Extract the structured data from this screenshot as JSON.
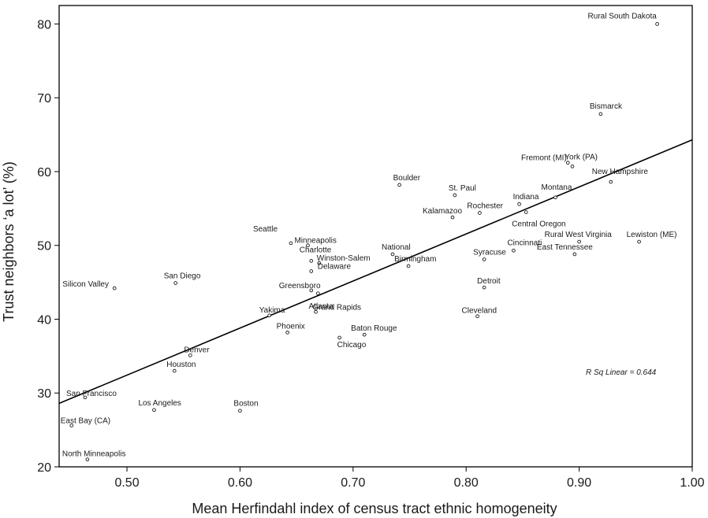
{
  "chart_data": {
    "type": "scatter",
    "xlabel": "Mean Herfindahl index of census tract ethnic homogeneity",
    "ylabel": "Trust neighbors ‘a lot’ (%)",
    "xlim": [
      0.44,
      1.0
    ],
    "ylim": [
      20,
      82.5
    ],
    "x_ticks": [
      0.5,
      0.6,
      0.7,
      0.8,
      0.9,
      1.0
    ],
    "x_tick_labels": [
      "0.50",
      "0.60",
      "0.70",
      "0.80",
      "0.90",
      "1.00"
    ],
    "y_ticks": [
      20,
      30,
      40,
      50,
      60,
      70,
      80
    ],
    "y_tick_labels": [
      "20",
      "30",
      "40",
      "50",
      "60",
      "70",
      "80"
    ],
    "grid": false,
    "annotation": "R Sq Linear = 0.644",
    "fit_line": {
      "x": [
        0.44,
        1.0
      ],
      "y": [
        28.6,
        64.3
      ]
    },
    "points": [
      {
        "label": "Rural South Dakota",
        "x": 0.969,
        "y": 80.0
      },
      {
        "label": "Bismarck",
        "x": 0.919,
        "y": 67.8
      },
      {
        "label": "York (PA)",
        "x": 0.89,
        "y": 61.2
      },
      {
        "label": "Fremont (MI)",
        "x": 0.894,
        "y": 60.7
      },
      {
        "label": "New Hampshire",
        "x": 0.928,
        "y": 58.6
      },
      {
        "label": "Montana",
        "x": 0.879,
        "y": 56.5
      },
      {
        "label": "Boulder",
        "x": 0.741,
        "y": 58.2
      },
      {
        "label": "St. Paul",
        "x": 0.79,
        "y": 56.8
      },
      {
        "label": "Indiana",
        "x": 0.847,
        "y": 55.6
      },
      {
        "label": "Rochester",
        "x": 0.812,
        "y": 54.4
      },
      {
        "label": "Central Oregon",
        "x": 0.853,
        "y": 54.5
      },
      {
        "label": "Kalamazoo",
        "x": 0.788,
        "y": 53.8
      },
      {
        "label": "Seattle",
        "x": 0.645,
        "y": 50.3
      },
      {
        "label": "Minneapolis",
        "x": 0.66,
        "y": 50.0
      },
      {
        "label": "Rural West Virginia",
        "x": 0.9,
        "y": 50.5
      },
      {
        "label": "Lewiston (ME)",
        "x": 0.953,
        "y": 50.5
      },
      {
        "label": "Cincinnati",
        "x": 0.842,
        "y": 49.3
      },
      {
        "label": "East Tennessee",
        "x": 0.896,
        "y": 48.8
      },
      {
        "label": "National",
        "x": 0.735,
        "y": 48.8
      },
      {
        "label": "Syracuse",
        "x": 0.816,
        "y": 48.1
      },
      {
        "label": "Charlotte",
        "x": 0.663,
        "y": 47.9
      },
      {
        "label": "Birmingham",
        "x": 0.749,
        "y": 47.2
      },
      {
        "label": "Winston-Salem",
        "x": 0.67,
        "y": 47.6
      },
      {
        "label": "Delaware",
        "x": 0.663,
        "y": 46.5
      },
      {
        "label": "Silicon Valley",
        "x": 0.489,
        "y": 44.2
      },
      {
        "label": "San Diego",
        "x": 0.543,
        "y": 44.9
      },
      {
        "label": "Greensboro",
        "x": 0.663,
        "y": 43.9
      },
      {
        "label": "Grand Rapids",
        "x": 0.669,
        "y": 43.5
      },
      {
        "label": "Detroit",
        "x": 0.816,
        "y": 44.3
      },
      {
        "label": "Atlanta",
        "x": 0.667,
        "y": 41.0
      },
      {
        "label": "Yakima",
        "x": 0.626,
        "y": 40.5
      },
      {
        "label": "Cleveland",
        "x": 0.81,
        "y": 40.4
      },
      {
        "label": "Phoenix",
        "x": 0.642,
        "y": 38.2
      },
      {
        "label": "Baton Rouge",
        "x": 0.71,
        "y": 37.9
      },
      {
        "label": "Chicago",
        "x": 0.688,
        "y": 37.5
      },
      {
        "label": "Denver",
        "x": 0.556,
        "y": 35.1
      },
      {
        "label": "Houston",
        "x": 0.542,
        "y": 33.0
      },
      {
        "label": "San Francisco",
        "x": 0.463,
        "y": 29.4
      },
      {
        "label": "Los Angeles",
        "x": 0.524,
        "y": 27.7
      },
      {
        "label": "Boston",
        "x": 0.6,
        "y": 27.6
      },
      {
        "label": "East Bay (CA)",
        "x": 0.451,
        "y": 25.6
      },
      {
        "label": "North Minneapolis",
        "x": 0.465,
        "y": 21.0
      }
    ]
  }
}
